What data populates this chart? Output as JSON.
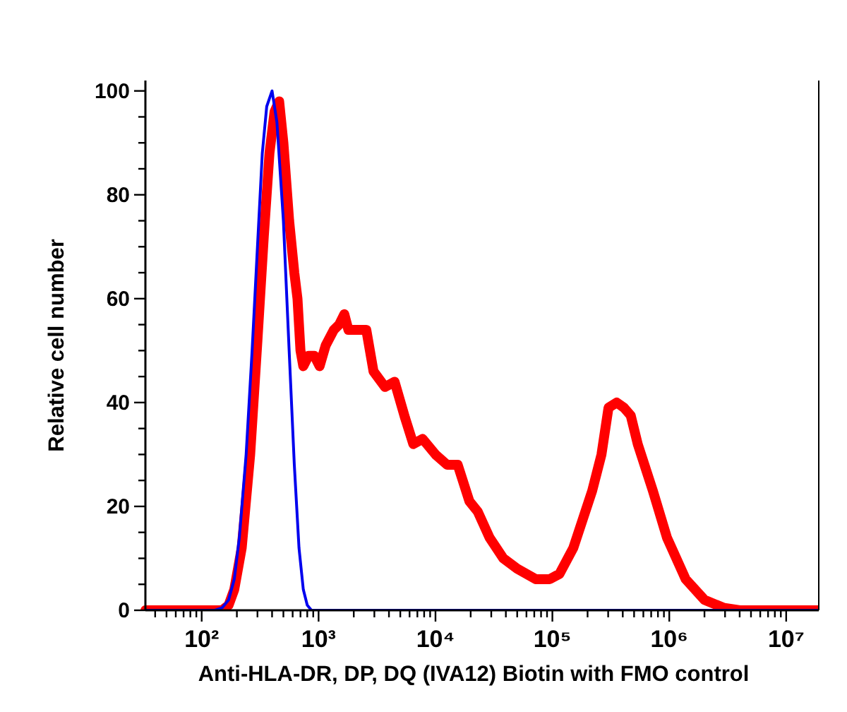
{
  "chart_data": {
    "type": "line",
    "xlabel": "Anti-HLA-DR, DP, DQ (IVA12) Biotin with FMO control",
    "ylabel": "Relative cell number",
    "log": "x",
    "xlim": [
      33,
      19000000
    ],
    "ylim": [
      0,
      102
    ],
    "xticks": [
      {
        "value": 40,
        "label": null
      },
      {
        "value": 50,
        "label": null
      },
      {
        "value": 60,
        "label": null
      },
      {
        "value": 70,
        "label": null
      },
      {
        "value": 80,
        "label": null
      },
      {
        "value": 90,
        "label": null
      },
      {
        "value": 100,
        "label": "10²"
      },
      {
        "value": 200,
        "label": null
      },
      {
        "value": 300,
        "label": null
      },
      {
        "value": 400,
        "label": null
      },
      {
        "value": 500,
        "label": null
      },
      {
        "value": 600,
        "label": null
      },
      {
        "value": 700,
        "label": null
      },
      {
        "value": 800,
        "label": null
      },
      {
        "value": 900,
        "label": null
      },
      {
        "value": 1000,
        "label": "10³"
      },
      {
        "value": 2000,
        "label": null
      },
      {
        "value": 3000,
        "label": null
      },
      {
        "value": 4000,
        "label": null
      },
      {
        "value": 5000,
        "label": null
      },
      {
        "value": 6000,
        "label": null
      },
      {
        "value": 7000,
        "label": null
      },
      {
        "value": 8000,
        "label": null
      },
      {
        "value": 9000,
        "label": null
      },
      {
        "value": 10000,
        "label": "10⁴"
      },
      {
        "value": 20000,
        "label": null
      },
      {
        "value": 30000,
        "label": null
      },
      {
        "value": 40000,
        "label": null
      },
      {
        "value": 50000,
        "label": null
      },
      {
        "value": 60000,
        "label": null
      },
      {
        "value": 70000,
        "label": null
      },
      {
        "value": 80000,
        "label": null
      },
      {
        "value": 90000,
        "label": null
      },
      {
        "value": 100000,
        "label": "10⁵"
      },
      {
        "value": 200000,
        "label": null
      },
      {
        "value": 300000,
        "label": null
      },
      {
        "value": 400000,
        "label": null
      },
      {
        "value": 500000,
        "label": null
      },
      {
        "value": 600000,
        "label": null
      },
      {
        "value": 700000,
        "label": null
      },
      {
        "value": 800000,
        "label": null
      },
      {
        "value": 900000,
        "label": null
      },
      {
        "value": 1000000,
        "label": "10⁶"
      },
      {
        "value": 2000000,
        "label": null
      },
      {
        "value": 3000000,
        "label": null
      },
      {
        "value": 4000000,
        "label": null
      },
      {
        "value": 5000000,
        "label": null
      },
      {
        "value": 6000000,
        "label": null
      },
      {
        "value": 7000000,
        "label": null
      },
      {
        "value": 8000000,
        "label": null
      },
      {
        "value": 9000000,
        "label": null
      },
      {
        "value": 10000000,
        "label": "10⁷"
      }
    ],
    "yticks": [
      0,
      {
        "value": 5,
        "label": null
      },
      {
        "value": 10,
        "label": null
      },
      {
        "value": 15,
        "label": null
      },
      20,
      {
        "value": 25,
        "label": null
      },
      {
        "value": 30,
        "label": null
      },
      {
        "value": 35,
        "label": null
      },
      40,
      {
        "value": 45,
        "label": null
      },
      {
        "value": 50,
        "label": null
      },
      {
        "value": 55,
        "label": null
      },
      60,
      {
        "value": 65,
        "label": null
      },
      {
        "value": 70,
        "label": null
      },
      {
        "value": 75,
        "label": null
      },
      80,
      {
        "value": 85,
        "label": null
      },
      {
        "value": 90,
        "label": null
      },
      {
        "value": 95,
        "label": null
      },
      100
    ],
    "grid": false,
    "marker": "none",
    "line_style": "solid",
    "series": [
      {
        "color": "#ff0000",
        "x": [
          33,
          150,
          170,
          190,
          220,
          260,
          300,
          340,
          380,
          420,
          460,
          500,
          560,
          620,
          660,
          700,
          740,
          820,
          920,
          1020,
          1150,
          1350,
          1500,
          1660,
          1800,
          2040,
          2560,
          2950,
          3700,
          4470,
          5500,
          6460,
          7760,
          10000,
          12600,
          15500,
          19500,
          23000,
          29000,
          38000,
          50000,
          72000,
          95000,
          115000,
          151000,
          219000,
          263000,
          302000,
          355000,
          410000,
          468000,
          537000,
          724000,
          955000,
          1380000,
          2000000,
          2900000,
          4000000,
          19000000
        ],
        "values": [
          0,
          0,
          1,
          4,
          12,
          30,
          52,
          72,
          88,
          96,
          98,
          90,
          75,
          65,
          60,
          50,
          47,
          49,
          49,
          47,
          51,
          54,
          55,
          57,
          54,
          54,
          54,
          46,
          43,
          44,
          37,
          32,
          33,
          30,
          28,
          28,
          21,
          19,
          14,
          10,
          8,
          6,
          6,
          7,
          12,
          23,
          30,
          39,
          40,
          39,
          37.5,
          32,
          23,
          14,
          6,
          2,
          0.5,
          0,
          0
        ]
      },
      {
        "color": "#0000ee",
        "x": [
          33,
          130,
          150,
          170,
          190,
          210,
          240,
          270,
          300,
          330,
          360,
          400,
          440,
          500,
          560,
          620,
          680,
          740,
          800,
          870,
          19000000
        ],
        "values": [
          0,
          0,
          0.5,
          2,
          6,
          14,
          30,
          50,
          70,
          88,
          97,
          100,
          94,
          75,
          50,
          28,
          12,
          4,
          1,
          0,
          0
        ]
      }
    ]
  }
}
